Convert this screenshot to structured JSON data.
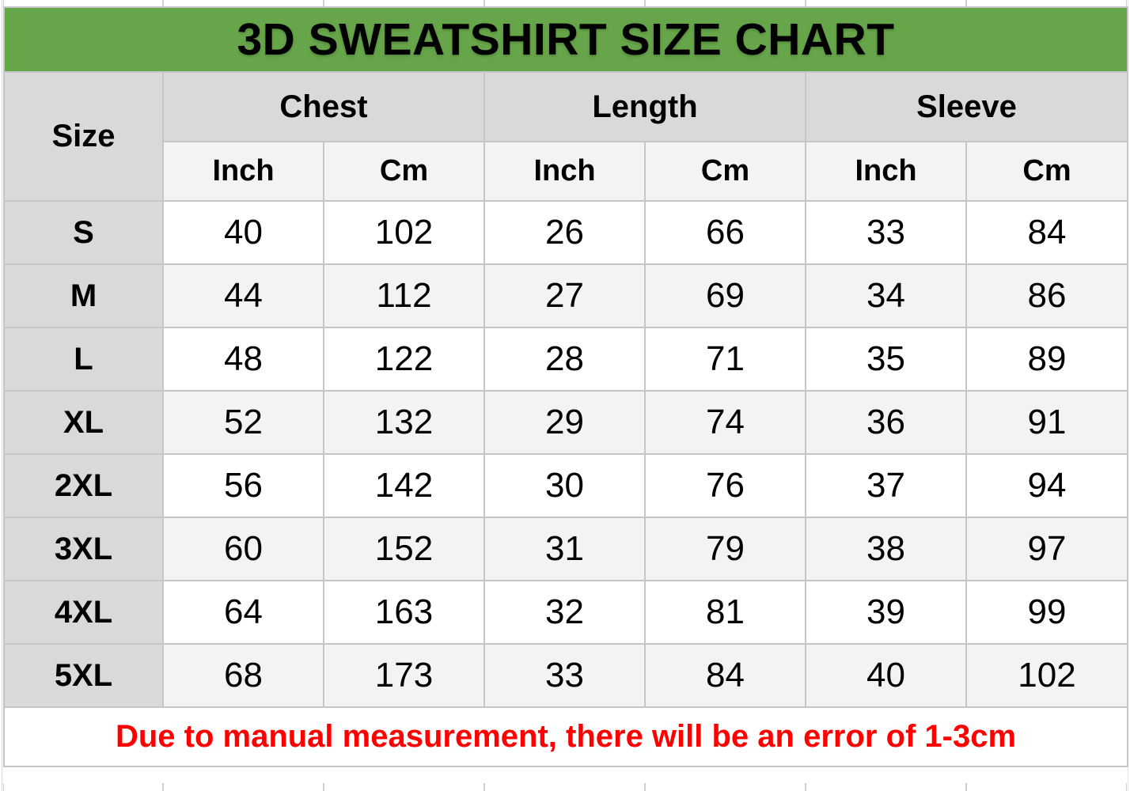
{
  "title": "3D SWEATSHIRT SIZE CHART",
  "colors": {
    "title_green": "#66a549",
    "header_gray": "#d9d9d9",
    "subheader_gray": "#f3f3f3",
    "alt_row_gray": "#f3f3f3",
    "note_red": "#ff0000",
    "grid_border": "#c6c6c6"
  },
  "table": {
    "size_header": "Size",
    "groups": [
      {
        "label": "Chest"
      },
      {
        "label": "Length"
      },
      {
        "label": "Sleeve"
      }
    ],
    "unit_headers": [
      "Inch",
      "Cm",
      "Inch",
      "Cm",
      "Inch",
      "Cm"
    ],
    "rows": [
      {
        "size": "S",
        "values": [
          "40",
          "102",
          "26",
          "66",
          "33",
          "84"
        ]
      },
      {
        "size": "M",
        "values": [
          "44",
          "112",
          "27",
          "69",
          "34",
          "86"
        ]
      },
      {
        "size": "L",
        "values": [
          "48",
          "122",
          "28",
          "71",
          "35",
          "89"
        ]
      },
      {
        "size": "XL",
        "values": [
          "52",
          "132",
          "29",
          "74",
          "36",
          "91"
        ]
      },
      {
        "size": "2XL",
        "values": [
          "56",
          "142",
          "30",
          "76",
          "37",
          "94"
        ]
      },
      {
        "size": "3XL",
        "values": [
          "60",
          "152",
          "31",
          "79",
          "38",
          "97"
        ]
      },
      {
        "size": "4XL",
        "values": [
          "64",
          "163",
          "32",
          "81",
          "39",
          "99"
        ]
      },
      {
        "size": "5XL",
        "values": [
          "68",
          "173",
          "33",
          "84",
          "40",
          "102"
        ]
      }
    ],
    "note": "Due to manual measurement, there will be an error of 1-3cm"
  },
  "chart_data": {
    "type": "table",
    "title": "3D SWEATSHIRT SIZE CHART",
    "columns": [
      "Size",
      "Chest (Inch)",
      "Chest (Cm)",
      "Length (Inch)",
      "Length (Cm)",
      "Sleeve (Inch)",
      "Sleeve (Cm)"
    ],
    "rows": [
      [
        "S",
        40,
        102,
        26,
        66,
        33,
        84
      ],
      [
        "M",
        44,
        112,
        27,
        69,
        34,
        86
      ],
      [
        "L",
        48,
        122,
        28,
        71,
        35,
        89
      ],
      [
        "XL",
        52,
        132,
        29,
        74,
        36,
        91
      ],
      [
        "2XL",
        56,
        142,
        30,
        76,
        37,
        94
      ],
      [
        "3XL",
        60,
        152,
        31,
        79,
        38,
        97
      ],
      [
        "4XL",
        64,
        163,
        32,
        81,
        39,
        99
      ],
      [
        "5XL",
        68,
        173,
        33,
        84,
        40,
        102
      ]
    ],
    "note": "Due to manual measurement, there will be an error of 1-3cm",
    "layout_hints": {
      "grid": true,
      "header_fill": "#d9d9d9",
      "title_fill": "#66a549",
      "zebra_fill": "#f3f3f3"
    }
  }
}
